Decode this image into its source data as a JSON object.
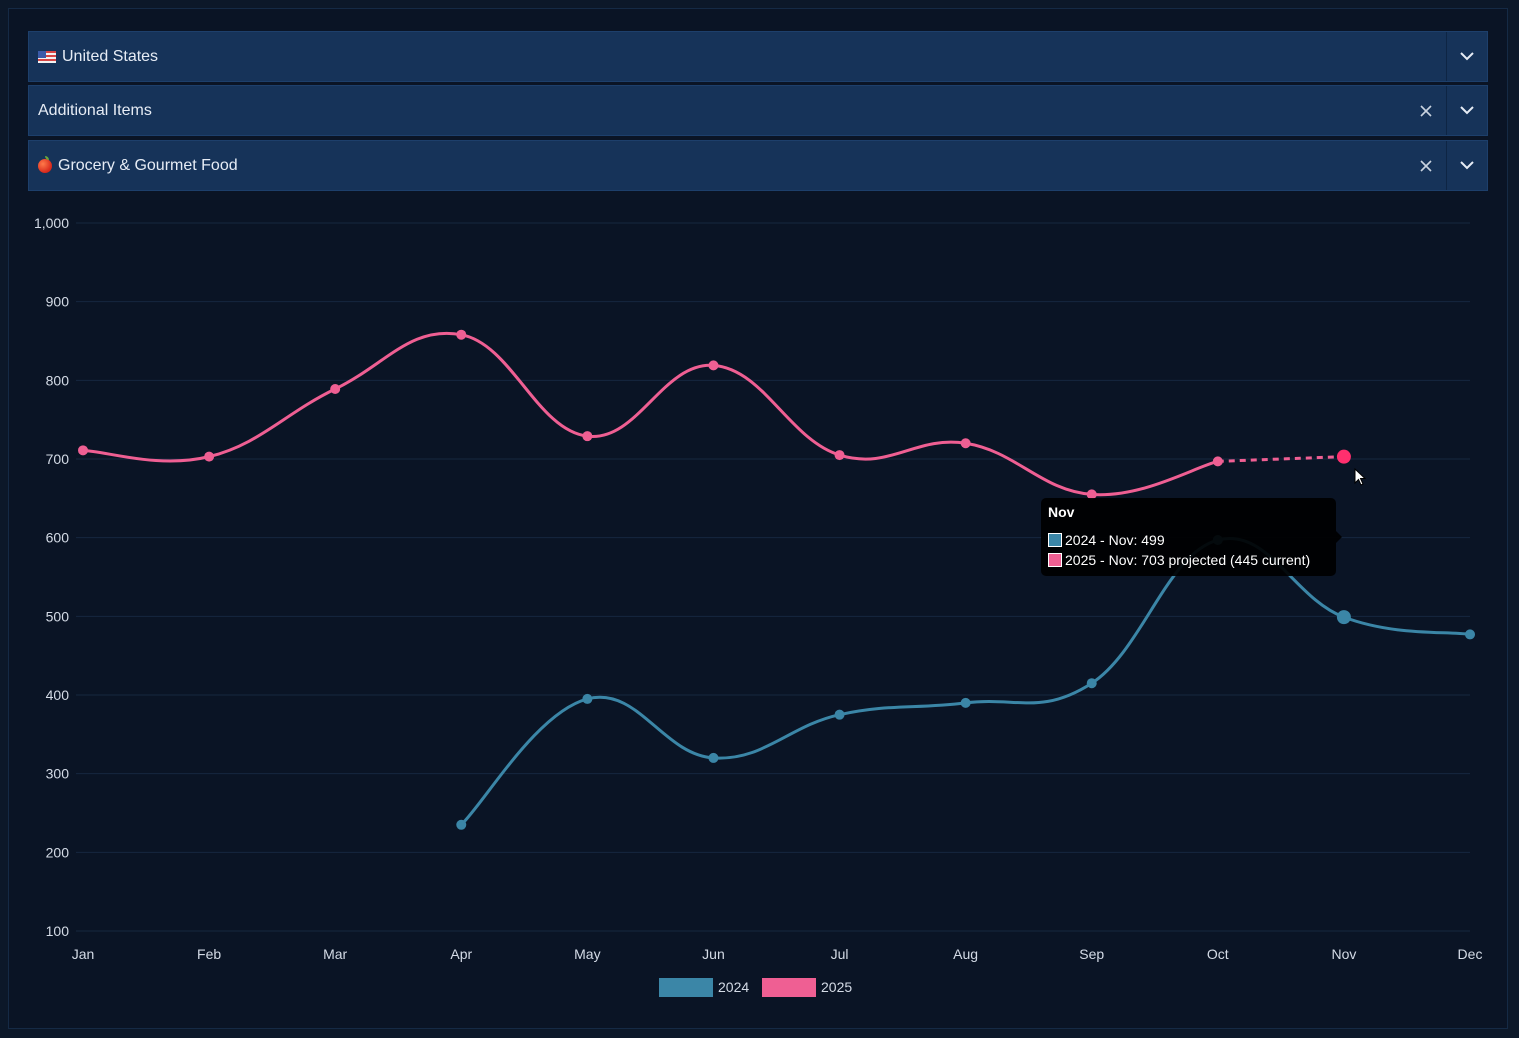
{
  "filters": [
    {
      "label": "United States",
      "icon": "us-flag-icon",
      "clearable": false
    },
    {
      "label": "Additional Items",
      "icon": null,
      "clearable": true
    },
    {
      "label": "Grocery & Gourmet Food",
      "icon": "apple-icon",
      "clearable": true
    }
  ],
  "clear_glyph": "X",
  "tooltip": {
    "title": "Nov",
    "lines": [
      {
        "text": "2024 - Nov: 499",
        "color": "#3b86a7"
      },
      {
        "text": "2025 - Nov: 703 projected (445 current)",
        "color": "#ef5f93"
      }
    ]
  },
  "chart_data": {
    "type": "line",
    "categories": [
      "Jan",
      "Feb",
      "Mar",
      "Apr",
      "May",
      "Jun",
      "Jul",
      "Aug",
      "Sep",
      "Oct",
      "Nov",
      "Dec"
    ],
    "series": [
      {
        "name": "2024",
        "color": "#3b86a7",
        "values": [
          null,
          null,
          null,
          235,
          395,
          320,
          375,
          390,
          415,
          597,
          499,
          477
        ]
      },
      {
        "name": "2025",
        "color": "#ef5f93",
        "values": [
          711,
          703,
          789,
          858,
          729,
          819,
          705,
          720,
          655,
          697,
          703,
          null
        ],
        "projected_from_index": 9
      }
    ],
    "yticks": [
      100,
      200,
      300,
      400,
      500,
      600,
      700,
      800,
      900,
      1000
    ],
    "ytick_labels": [
      "100",
      "200",
      "300",
      "400",
      "500",
      "600",
      "700",
      "800",
      "900",
      "1,000"
    ],
    "ylim": [
      100,
      1000
    ],
    "grid": true,
    "legend_position": "bottom",
    "highlighted_category": "Nov"
  }
}
